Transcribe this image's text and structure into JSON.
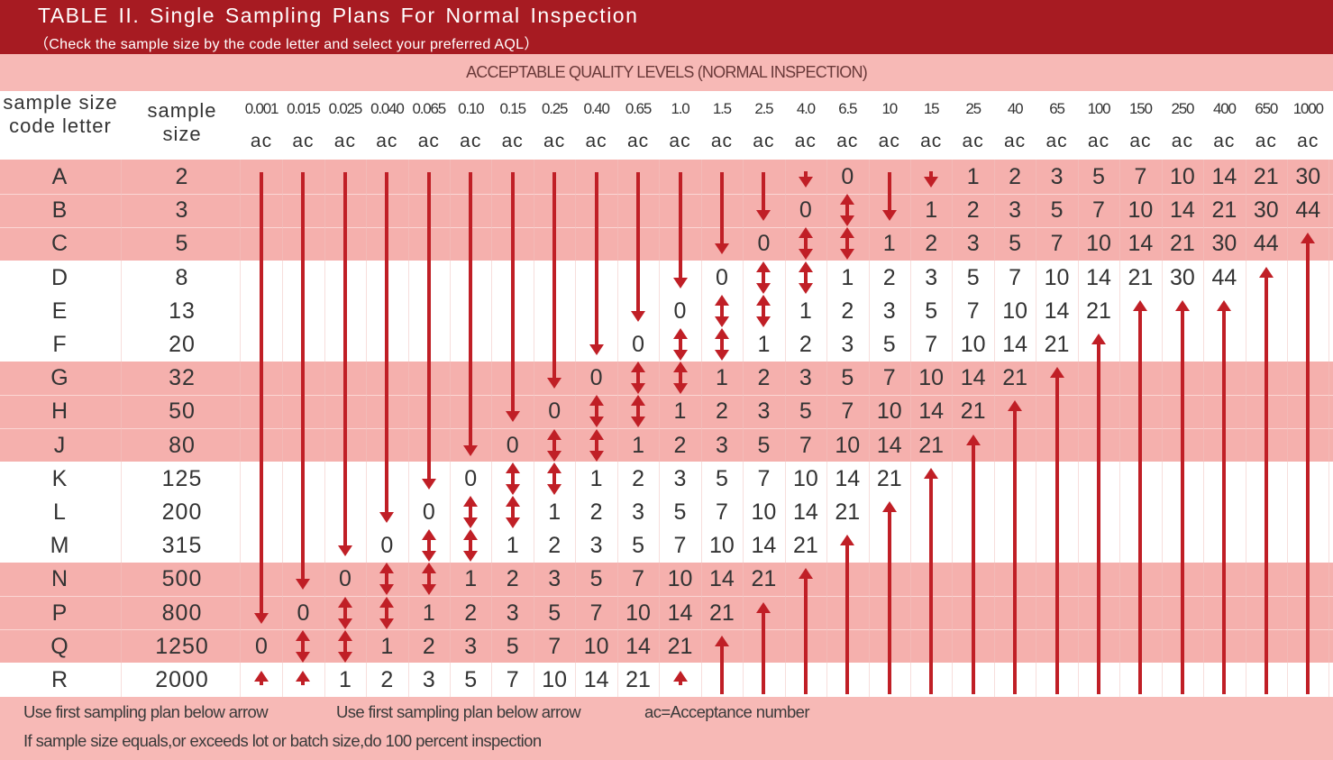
{
  "title": "TABLE II. Single  Sampling Plans  For  Normal  Inspection",
  "subtitle": "（Check  the sample size by the code letter and select your preferred AQL）",
  "aql_banner": "ACCEPTABLE QUALITY LEVELS (NORMAL INSPECTION)",
  "headers": {
    "code_letter": "sample size code letter",
    "sample_size": "sample size",
    "ac": "ac"
  },
  "aql_levels": [
    "0.001",
    "0.015",
    "0.025",
    "0.040",
    "0.065",
    "0.10",
    "0.15",
    "0.25",
    "0.40",
    "0.65",
    "1.0",
    "1.5",
    "2.5",
    "4.0",
    "6.5",
    "10",
    "15",
    "25",
    "40",
    "65",
    "100",
    "150",
    "250",
    "400",
    "650",
    "1000"
  ],
  "rows": [
    {
      "letter": "A",
      "size": "2",
      "cells": [
        "dn",
        "dn",
        "dn",
        "dn",
        "dn",
        "dn",
        "dn",
        "dn",
        "dn",
        "dn",
        "dn",
        "dn",
        "dn",
        "dn",
        "0",
        "dn",
        "dn",
        "1",
        "2",
        "3",
        "5",
        "7",
        "10",
        "14",
        "21",
        "30"
      ]
    },
    {
      "letter": "B",
      "size": "3",
      "cells": [
        "dn",
        "dn",
        "dn",
        "dn",
        "dn",
        "dn",
        "dn",
        "dn",
        "dn",
        "dn",
        "dn",
        "dn",
        "dn",
        "0",
        "ud",
        "dn",
        "1",
        "2",
        "3",
        "5",
        "7",
        "10",
        "14",
        "21",
        "30",
        "44"
      ]
    },
    {
      "letter": "C",
      "size": "5",
      "cells": [
        "dn",
        "dn",
        "dn",
        "dn",
        "dn",
        "dn",
        "dn",
        "dn",
        "dn",
        "dn",
        "dn",
        "dn",
        "0",
        "ud",
        "ud",
        "1",
        "2",
        "3",
        "5",
        "7",
        "10",
        "14",
        "21",
        "30",
        "44",
        "up"
      ]
    },
    {
      "letter": "D",
      "size": "8",
      "cells": [
        "dn",
        "dn",
        "dn",
        "dn",
        "dn",
        "dn",
        "dn",
        "dn",
        "dn",
        "dn",
        "dn",
        "0",
        "ud",
        "ud",
        "1",
        "2",
        "3",
        "5",
        "7",
        "10",
        "14",
        "21",
        "30",
        "44",
        "up",
        "up"
      ]
    },
    {
      "letter": "E",
      "size": "13",
      "cells": [
        "dn",
        "dn",
        "dn",
        "dn",
        "dn",
        "dn",
        "dn",
        "dn",
        "dn",
        "dn",
        "0",
        "ud",
        "ud",
        "1",
        "2",
        "3",
        "5",
        "7",
        "10",
        "14",
        "21",
        "up",
        "up",
        "up",
        "up",
        "up"
      ]
    },
    {
      "letter": "F",
      "size": "20",
      "cells": [
        "dn",
        "dn",
        "dn",
        "dn",
        "dn",
        "dn",
        "dn",
        "dn",
        "dn",
        "0",
        "ud",
        "ud",
        "1",
        "2",
        "3",
        "5",
        "7",
        "10",
        "14",
        "21",
        "up",
        "up",
        "up",
        "up",
        "up",
        "up"
      ]
    },
    {
      "letter": "G",
      "size": "32",
      "cells": [
        "dn",
        "dn",
        "dn",
        "dn",
        "dn",
        "dn",
        "dn",
        "dn",
        "0",
        "ud",
        "ud",
        "1",
        "2",
        "3",
        "5",
        "7",
        "10",
        "14",
        "21",
        "up",
        "up",
        "up",
        "up",
        "up",
        "up",
        "up"
      ]
    },
    {
      "letter": "H",
      "size": "50",
      "cells": [
        "dn",
        "dn",
        "dn",
        "dn",
        "dn",
        "dn",
        "dn",
        "0",
        "ud",
        "ud",
        "1",
        "2",
        "3",
        "5",
        "7",
        "10",
        "14",
        "21",
        "up",
        "up",
        "up",
        "up",
        "up",
        "up",
        "up",
        "up"
      ]
    },
    {
      "letter": "J",
      "size": "80",
      "cells": [
        "dn",
        "dn",
        "dn",
        "dn",
        "dn",
        "dn",
        "0",
        "ud",
        "ud",
        "1",
        "2",
        "3",
        "5",
        "7",
        "10",
        "14",
        "21",
        "up",
        "up",
        "up",
        "up",
        "up",
        "up",
        "up",
        "up",
        "up"
      ]
    },
    {
      "letter": "K",
      "size": "125",
      "cells": [
        "dn",
        "dn",
        "dn",
        "dn",
        "dn",
        "0",
        "ud",
        "ud",
        "1",
        "2",
        "3",
        "5",
        "7",
        "10",
        "14",
        "21",
        "up",
        "up",
        "up",
        "up",
        "up",
        "up",
        "up",
        "up",
        "up",
        "up"
      ]
    },
    {
      "letter": "L",
      "size": "200",
      "cells": [
        "dn",
        "dn",
        "dn",
        "dn",
        "0",
        "ud",
        "ud",
        "1",
        "2",
        "3",
        "5",
        "7",
        "10",
        "14",
        "21",
        "up",
        "up",
        "up",
        "up",
        "up",
        "up",
        "up",
        "up",
        "up",
        "up",
        "up"
      ]
    },
    {
      "letter": "M",
      "size": "315",
      "cells": [
        "dn",
        "dn",
        "dn",
        "0",
        "ud",
        "ud",
        "1",
        "2",
        "3",
        "5",
        "7",
        "10",
        "14",
        "21",
        "up",
        "up",
        "up",
        "up",
        "up",
        "up",
        "up",
        "up",
        "up",
        "up",
        "up",
        "up"
      ]
    },
    {
      "letter": "N",
      "size": "500",
      "cells": [
        "dn",
        "dn",
        "0",
        "ud",
        "ud",
        "1",
        "2",
        "3",
        "5",
        "7",
        "10",
        "14",
        "21",
        "up",
        "up",
        "up",
        "up",
        "up",
        "up",
        "up",
        "up",
        "up",
        "up",
        "up",
        "up",
        "up"
      ]
    },
    {
      "letter": "P",
      "size": "800",
      "cells": [
        "dn",
        "0",
        "ud",
        "ud",
        "1",
        "2",
        "3",
        "5",
        "7",
        "10",
        "14",
        "21",
        "up",
        "up",
        "up",
        "up",
        "up",
        "up",
        "up",
        "up",
        "up",
        "up",
        "up",
        "up",
        "up",
        "up"
      ]
    },
    {
      "letter": "Q",
      "size": "1250",
      "cells": [
        "0",
        "ud",
        "ud",
        "1",
        "2",
        "3",
        "5",
        "7",
        "10",
        "14",
        "21",
        "up",
        "up",
        "up",
        "up",
        "up",
        "up",
        "up",
        "up",
        "up",
        "up",
        "up",
        "up",
        "up",
        "up",
        "up"
      ]
    },
    {
      "letter": "R",
      "size": "2000",
      "cells": [
        "up",
        "up",
        "1",
        "2",
        "3",
        "5",
        "7",
        "10",
        "14",
        "21",
        "up",
        "up",
        "up",
        "up",
        "up",
        "up",
        "up",
        "up",
        "up",
        "up",
        "up",
        "up",
        "up",
        "up",
        "up",
        "up"
      ]
    }
  ],
  "footer": {
    "note1": "Use first sampling plan below arrow",
    "note2": "Use first sampling plan below arrow",
    "note3": "ac=Acceptance number",
    "note4": "If sample size equals,or exceeds lot or batch size,do 100 percent inspection"
  },
  "colors": {
    "title_bg": "#a71b22",
    "band_pink": "#f5b0ad",
    "arrow_red": "#c01f26"
  }
}
